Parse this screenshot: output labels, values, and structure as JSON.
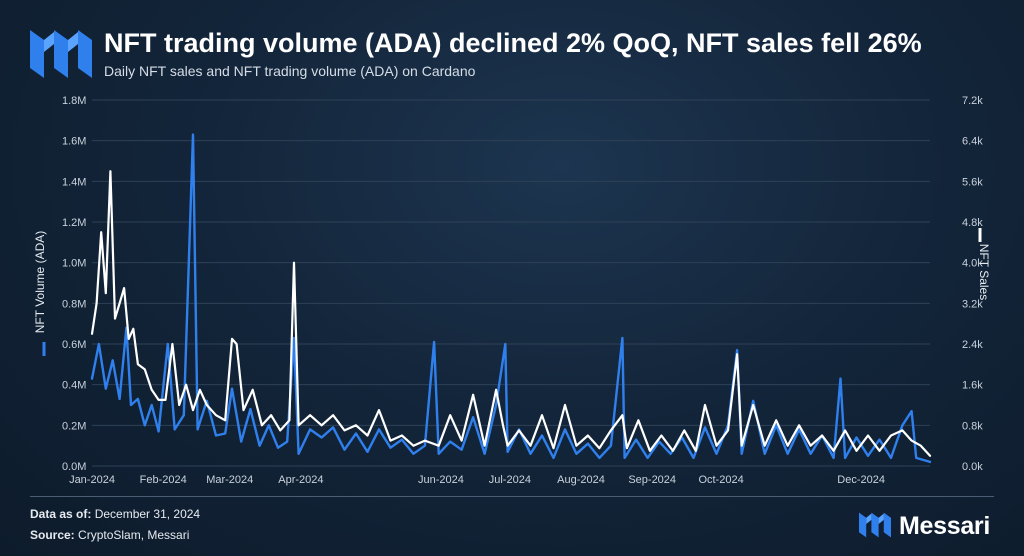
{
  "header": {
    "title": "NFT trading volume (ADA) declined 2% QoQ, NFT sales fell 26%",
    "subtitle": "Daily NFT sales and NFT trading volume (ADA) on Cardano"
  },
  "footer": {
    "data_as_of_label": "Data as of:",
    "data_as_of_value": "December 31, 2024",
    "source_label": "Source:",
    "source_value": "CryptoSlam, Messari"
  },
  "brand": {
    "name": "Messari",
    "logo_icon": "messari-logo-icon"
  },
  "colors": {
    "volume": "#2f80ed",
    "sales": "#ffffff",
    "grid": "#2e4156",
    "background": "#13253a"
  },
  "chart_data": {
    "type": "line",
    "title": "NFT trading volume (ADA) declined 2% QoQ, NFT sales fell 26%",
    "subtitle": "Daily NFT sales and NFT trading volume (ADA) on Cardano",
    "x_tick_labels": [
      "Jan-2024",
      "Feb-2024",
      "Mar-2024",
      "Apr-2024",
      "Jun-2024",
      "Jul-2024",
      "Aug-2024",
      "Sep-2024",
      "Oct-2024",
      "Dec-2024"
    ],
    "x_tick_dates": [
      "2024-01-01",
      "2024-02-01",
      "2024-03-01",
      "2024-04-01",
      "2024-06-01",
      "2024-07-01",
      "2024-08-01",
      "2024-09-01",
      "2024-10-01",
      "2024-12-01"
    ],
    "x_range": [
      "2024-01-01",
      "2024-12-31"
    ],
    "y_left": {
      "label": "NFT Volume (ADA)",
      "ylim": [
        0,
        1800000
      ],
      "tick_labels": [
        "0.0M",
        "0.2M",
        "0.4M",
        "0.6M",
        "0.8M",
        "1.0M",
        "1.2M",
        "1.4M",
        "1.6M",
        "1.8M"
      ],
      "ticks": [
        0,
        200000,
        400000,
        600000,
        800000,
        1000000,
        1200000,
        1400000,
        1600000,
        1800000
      ]
    },
    "y_right": {
      "label": "NFT Sales",
      "ylim": [
        0,
        7200
      ],
      "tick_labels": [
        "0.0k",
        "0.8k",
        "1.6k",
        "2.4k",
        "3.2k",
        "4.0k",
        "4.8k",
        "5.6k",
        "6.4k",
        "7.2k"
      ],
      "ticks": [
        0,
        800,
        1600,
        2400,
        3200,
        4000,
        4800,
        5600,
        6400,
        7200
      ]
    },
    "grid": true,
    "series": [
      {
        "name": "NFT Volume (ADA)",
        "axis": "left",
        "color": "#2f80ed",
        "points": [
          [
            "2024-01-01",
            430000
          ],
          [
            "2024-01-04",
            600000
          ],
          [
            "2024-01-07",
            380000
          ],
          [
            "2024-01-10",
            520000
          ],
          [
            "2024-01-13",
            330000
          ],
          [
            "2024-01-16",
            680000
          ],
          [
            "2024-01-18",
            300000
          ],
          [
            "2024-01-21",
            330000
          ],
          [
            "2024-01-24",
            200000
          ],
          [
            "2024-01-27",
            300000
          ],
          [
            "2024-01-30",
            170000
          ],
          [
            "2024-02-03",
            600000
          ],
          [
            "2024-02-06",
            180000
          ],
          [
            "2024-02-10",
            250000
          ],
          [
            "2024-02-14",
            1630000
          ],
          [
            "2024-02-16",
            180000
          ],
          [
            "2024-02-20",
            320000
          ],
          [
            "2024-02-24",
            150000
          ],
          [
            "2024-02-28",
            160000
          ],
          [
            "2024-03-02",
            380000
          ],
          [
            "2024-03-06",
            120000
          ],
          [
            "2024-03-10",
            280000
          ],
          [
            "2024-03-14",
            100000
          ],
          [
            "2024-03-18",
            200000
          ],
          [
            "2024-03-22",
            90000
          ],
          [
            "2024-03-26",
            120000
          ],
          [
            "2024-03-29",
            630000
          ],
          [
            "2024-03-31",
            60000
          ],
          [
            "2024-04-05",
            180000
          ],
          [
            "2024-04-10",
            140000
          ],
          [
            "2024-04-15",
            190000
          ],
          [
            "2024-04-20",
            80000
          ],
          [
            "2024-04-25",
            160000
          ],
          [
            "2024-04-30",
            70000
          ],
          [
            "2024-05-05",
            180000
          ],
          [
            "2024-05-10",
            90000
          ],
          [
            "2024-05-15",
            130000
          ],
          [
            "2024-05-20",
            60000
          ],
          [
            "2024-05-25",
            100000
          ],
          [
            "2024-05-29",
            610000
          ],
          [
            "2024-05-31",
            60000
          ],
          [
            "2024-06-05",
            120000
          ],
          [
            "2024-06-10",
            80000
          ],
          [
            "2024-06-15",
            240000
          ],
          [
            "2024-06-20",
            60000
          ],
          [
            "2024-06-25",
            300000
          ],
          [
            "2024-06-29",
            600000
          ],
          [
            "2024-06-30",
            70000
          ],
          [
            "2024-07-05",
            180000
          ],
          [
            "2024-07-10",
            60000
          ],
          [
            "2024-07-15",
            150000
          ],
          [
            "2024-07-20",
            40000
          ],
          [
            "2024-07-25",
            180000
          ],
          [
            "2024-07-30",
            60000
          ],
          [
            "2024-08-04",
            110000
          ],
          [
            "2024-08-09",
            40000
          ],
          [
            "2024-08-14",
            100000
          ],
          [
            "2024-08-19",
            630000
          ],
          [
            "2024-08-20",
            40000
          ],
          [
            "2024-08-25",
            130000
          ],
          [
            "2024-08-30",
            40000
          ],
          [
            "2024-09-04",
            120000
          ],
          [
            "2024-09-09",
            60000
          ],
          [
            "2024-09-14",
            140000
          ],
          [
            "2024-09-19",
            40000
          ],
          [
            "2024-09-24",
            190000
          ],
          [
            "2024-09-29",
            60000
          ],
          [
            "2024-10-04",
            200000
          ],
          [
            "2024-10-08",
            570000
          ],
          [
            "2024-10-10",
            60000
          ],
          [
            "2024-10-15",
            320000
          ],
          [
            "2024-10-20",
            60000
          ],
          [
            "2024-10-25",
            200000
          ],
          [
            "2024-10-30",
            60000
          ],
          [
            "2024-11-04",
            180000
          ],
          [
            "2024-11-09",
            60000
          ],
          [
            "2024-11-14",
            150000
          ],
          [
            "2024-11-19",
            40000
          ],
          [
            "2024-11-22",
            430000
          ],
          [
            "2024-11-24",
            40000
          ],
          [
            "2024-11-29",
            140000
          ],
          [
            "2024-12-04",
            50000
          ],
          [
            "2024-12-09",
            130000
          ],
          [
            "2024-12-14",
            40000
          ],
          [
            "2024-12-19",
            200000
          ],
          [
            "2024-12-23",
            270000
          ],
          [
            "2024-12-25",
            40000
          ],
          [
            "2024-12-28",
            30000
          ],
          [
            "2024-12-31",
            20000
          ]
        ]
      },
      {
        "name": "NFT Sales",
        "axis": "right",
        "color": "#ffffff",
        "points": [
          [
            "2024-01-01",
            2600
          ],
          [
            "2024-01-03",
            3200
          ],
          [
            "2024-01-05",
            4600
          ],
          [
            "2024-01-07",
            3400
          ],
          [
            "2024-01-09",
            5800
          ],
          [
            "2024-01-11",
            2900
          ],
          [
            "2024-01-13",
            3200
          ],
          [
            "2024-01-15",
            3500
          ],
          [
            "2024-01-17",
            2500
          ],
          [
            "2024-01-19",
            2700
          ],
          [
            "2024-01-21",
            2000
          ],
          [
            "2024-01-24",
            1900
          ],
          [
            "2024-01-27",
            1500
          ],
          [
            "2024-01-30",
            1300
          ],
          [
            "2024-02-02",
            1300
          ],
          [
            "2024-02-05",
            2400
          ],
          [
            "2024-02-08",
            1200
          ],
          [
            "2024-02-11",
            1600
          ],
          [
            "2024-02-14",
            1100
          ],
          [
            "2024-02-17",
            1500
          ],
          [
            "2024-02-20",
            1200
          ],
          [
            "2024-02-24",
            1000
          ],
          [
            "2024-02-28",
            900
          ],
          [
            "2024-03-02",
            2500
          ],
          [
            "2024-03-04",
            2400
          ],
          [
            "2024-03-07",
            1100
          ],
          [
            "2024-03-11",
            1500
          ],
          [
            "2024-03-15",
            800
          ],
          [
            "2024-03-19",
            1000
          ],
          [
            "2024-03-23",
            700
          ],
          [
            "2024-03-27",
            900
          ],
          [
            "2024-03-29",
            4000
          ],
          [
            "2024-03-31",
            800
          ],
          [
            "2024-04-05",
            1000
          ],
          [
            "2024-04-10",
            800
          ],
          [
            "2024-04-15",
            1000
          ],
          [
            "2024-04-20",
            700
          ],
          [
            "2024-04-25",
            800
          ],
          [
            "2024-04-30",
            600
          ],
          [
            "2024-05-05",
            1100
          ],
          [
            "2024-05-10",
            500
          ],
          [
            "2024-05-15",
            600
          ],
          [
            "2024-05-20",
            400
          ],
          [
            "2024-05-25",
            500
          ],
          [
            "2024-05-31",
            400
          ],
          [
            "2024-06-05",
            1000
          ],
          [
            "2024-06-10",
            500
          ],
          [
            "2024-06-15",
            1400
          ],
          [
            "2024-06-20",
            400
          ],
          [
            "2024-06-25",
            1500
          ],
          [
            "2024-06-28",
            800
          ],
          [
            "2024-06-30",
            400
          ],
          [
            "2024-07-05",
            700
          ],
          [
            "2024-07-10",
            400
          ],
          [
            "2024-07-15",
            1000
          ],
          [
            "2024-07-20",
            350
          ],
          [
            "2024-07-25",
            1200
          ],
          [
            "2024-07-30",
            400
          ],
          [
            "2024-08-04",
            600
          ],
          [
            "2024-08-09",
            350
          ],
          [
            "2024-08-14",
            700
          ],
          [
            "2024-08-19",
            1000
          ],
          [
            "2024-08-21",
            350
          ],
          [
            "2024-08-26",
            900
          ],
          [
            "2024-08-31",
            300
          ],
          [
            "2024-09-05",
            600
          ],
          [
            "2024-09-10",
            300
          ],
          [
            "2024-09-15",
            700
          ],
          [
            "2024-09-20",
            300
          ],
          [
            "2024-09-24",
            1200
          ],
          [
            "2024-09-29",
            400
          ],
          [
            "2024-10-04",
            700
          ],
          [
            "2024-10-08",
            2200
          ],
          [
            "2024-10-10",
            400
          ],
          [
            "2024-10-15",
            1200
          ],
          [
            "2024-10-20",
            400
          ],
          [
            "2024-10-25",
            900
          ],
          [
            "2024-10-30",
            400
          ],
          [
            "2024-11-04",
            800
          ],
          [
            "2024-11-09",
            400
          ],
          [
            "2024-11-14",
            600
          ],
          [
            "2024-11-19",
            300
          ],
          [
            "2024-11-24",
            700
          ],
          [
            "2024-11-29",
            300
          ],
          [
            "2024-12-04",
            600
          ],
          [
            "2024-12-09",
            300
          ],
          [
            "2024-12-14",
            600
          ],
          [
            "2024-12-19",
            700
          ],
          [
            "2024-12-23",
            500
          ],
          [
            "2024-12-27",
            400
          ],
          [
            "2024-12-31",
            200
          ]
        ]
      }
    ]
  }
}
